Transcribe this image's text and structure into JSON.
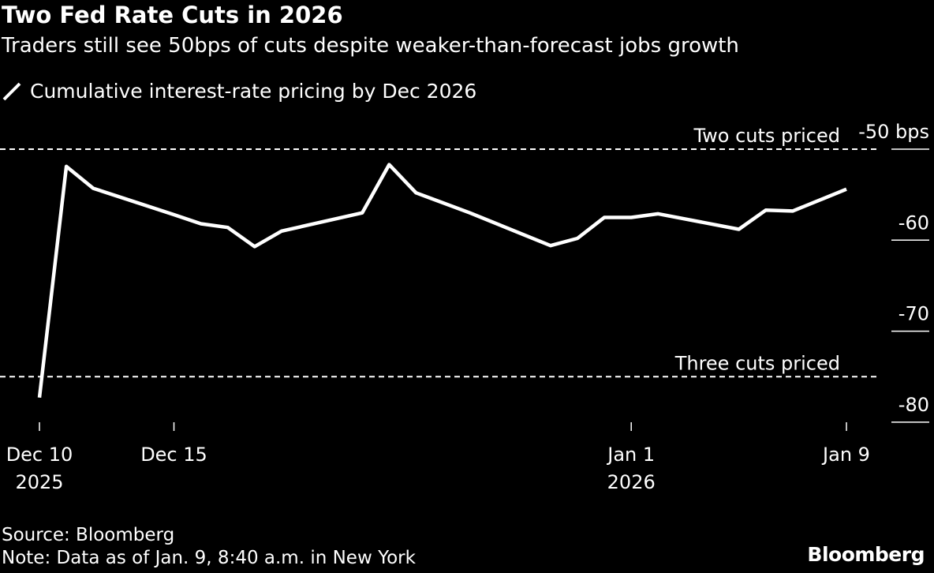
{
  "title": "Two Fed Rate Cuts in 2026",
  "subtitle": "Traders still see 50bps of cuts despite weaker-than-forecast jobs growth",
  "source": "Source: Bloomberg",
  "note": "Note: Data as of Jan. 9, 8:40 a.m. in New York",
  "logo": "Bloomberg",
  "colors": {
    "background": "#000000",
    "line": "#ffffff"
  },
  "chart_data": {
    "type": "line",
    "title": "Two Fed Rate Cuts in 2026",
    "legend_position": "top-left",
    "grid": false,
    "ylim": [
      -80,
      -50
    ],
    "y_axis_side": "right",
    "y_unit": "bps",
    "y_ticks": [
      {
        "value": -50,
        "label": "-50 bps"
      },
      {
        "value": -60,
        "label": "-60"
      },
      {
        "value": -70,
        "label": "-70"
      },
      {
        "value": -80,
        "label": "-80"
      }
    ],
    "x_ticks": [
      {
        "date": "2025-12-10",
        "label": "Dec 10",
        "sub": "2025"
      },
      {
        "date": "2025-12-15",
        "label": "Dec 15",
        "sub": ""
      },
      {
        "date": "2026-01-01",
        "label": "Jan 1",
        "sub": "2026"
      },
      {
        "date": "2026-01-09",
        "label": "Jan 9",
        "sub": ""
      }
    ],
    "reference_lines": [
      {
        "value": -50,
        "label": "Two cuts priced"
      },
      {
        "value": -75,
        "label": "Three cuts priced"
      }
    ],
    "series": [
      {
        "name": "Cumulative interest-rate pricing by Dec 2026",
        "points": [
          [
            "2025-12-10",
            -77.3
          ],
          [
            "2025-12-11",
            -51.9
          ],
          [
            "2025-12-12",
            -54.3
          ],
          [
            "2025-12-15",
            -57.2
          ],
          [
            "2025-12-16",
            -58.2
          ],
          [
            "2025-12-17",
            -58.6
          ],
          [
            "2025-12-18",
            -60.7
          ],
          [
            "2025-12-19",
            -59.0
          ],
          [
            "2025-12-22",
            -57.0
          ],
          [
            "2025-12-23",
            -51.7
          ],
          [
            "2025-12-24",
            -54.8
          ],
          [
            "2025-12-26",
            -57.0
          ],
          [
            "2025-12-29",
            -60.6
          ],
          [
            "2025-12-30",
            -59.8
          ],
          [
            "2025-12-31",
            -57.5
          ],
          [
            "2026-01-01",
            -57.5
          ],
          [
            "2026-01-02",
            -57.1
          ],
          [
            "2026-01-05",
            -58.8
          ],
          [
            "2026-01-06",
            -56.7
          ],
          [
            "2026-01-07",
            -56.8
          ],
          [
            "2026-01-08",
            -55.6
          ],
          [
            "2026-01-09",
            -54.4
          ]
        ]
      }
    ]
  }
}
